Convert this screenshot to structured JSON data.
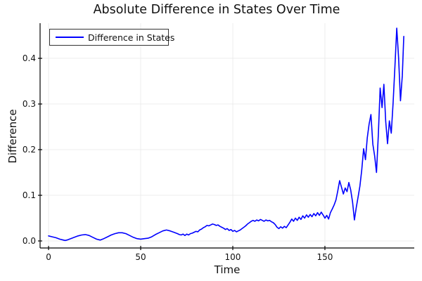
{
  "title": "Absolute Difference in States Over Time",
  "legend": {
    "label": "Difference in States"
  },
  "colors": {
    "line": "#0000ff",
    "grid": "#ececec",
    "spine": "#000000",
    "text": "#111111",
    "background": "#ffffff"
  },
  "chart_data": {
    "type": "line",
    "title": "Absolute Difference in States Over Time",
    "xlabel": "Time",
    "ylabel": "Difference",
    "xlim": [
      -4.6,
      198.5
    ],
    "ylim": [
      -0.0154,
      0.477
    ],
    "x_ticks": [
      0,
      50,
      100,
      150
    ],
    "x_tick_labels": [
      "0",
      "50",
      "100",
      "150"
    ],
    "y_ticks": [
      0.0,
      0.1,
      0.2,
      0.3,
      0.4
    ],
    "y_tick_labels": [
      "0.0",
      "0.1",
      "0.2",
      "0.3",
      "0.4"
    ],
    "grid": true,
    "legend_position": "top-left",
    "series": [
      {
        "name": "Difference in States",
        "color": "#0000ff",
        "points": [
          [
            0,
            0.011
          ],
          [
            2,
            0.009
          ],
          [
            4,
            0.007
          ],
          [
            6,
            0.004
          ],
          [
            8,
            0.002
          ],
          [
            9,
            0.001
          ],
          [
            10,
            0.002
          ],
          [
            12,
            0.005
          ],
          [
            14,
            0.008
          ],
          [
            16,
            0.011
          ],
          [
            18,
            0.013
          ],
          [
            20,
            0.014
          ],
          [
            22,
            0.012
          ],
          [
            24,
            0.008
          ],
          [
            26,
            0.004
          ],
          [
            28,
            0.002
          ],
          [
            30,
            0.005
          ],
          [
            32,
            0.009
          ],
          [
            34,
            0.013
          ],
          [
            36,
            0.016
          ],
          [
            38,
            0.018
          ],
          [
            40,
            0.018
          ],
          [
            42,
            0.016
          ],
          [
            44,
            0.012
          ],
          [
            46,
            0.008
          ],
          [
            48,
            0.005
          ],
          [
            50,
            0.004
          ],
          [
            52,
            0.005
          ],
          [
            54,
            0.006
          ],
          [
            56,
            0.009
          ],
          [
            58,
            0.014
          ],
          [
            60,
            0.018
          ],
          [
            62,
            0.022
          ],
          [
            64,
            0.024
          ],
          [
            66,
            0.022
          ],
          [
            68,
            0.019
          ],
          [
            70,
            0.016
          ],
          [
            71,
            0.014
          ],
          [
            72,
            0.013
          ],
          [
            73,
            0.015
          ],
          [
            74,
            0.012
          ],
          [
            75,
            0.015
          ],
          [
            76,
            0.013
          ],
          [
            77,
            0.016
          ],
          [
            78,
            0.017
          ],
          [
            79,
            0.019
          ],
          [
            80,
            0.021
          ],
          [
            81,
            0.02
          ],
          [
            82,
            0.024
          ],
          [
            83,
            0.026
          ],
          [
            84,
            0.029
          ],
          [
            85,
            0.031
          ],
          [
            86,
            0.034
          ],
          [
            87,
            0.033
          ],
          [
            88,
            0.035
          ],
          [
            89,
            0.037
          ],
          [
            90,
            0.036
          ],
          [
            91,
            0.034
          ],
          [
            92,
            0.035
          ],
          [
            93,
            0.032
          ],
          [
            94,
            0.03
          ],
          [
            95,
            0.028
          ],
          [
            96,
            0.025
          ],
          [
            97,
            0.027
          ],
          [
            98,
            0.023
          ],
          [
            99,
            0.025
          ],
          [
            100,
            0.021
          ],
          [
            101,
            0.023
          ],
          [
            102,
            0.02
          ],
          [
            103,
            0.022
          ],
          [
            104,
            0.024
          ],
          [
            105,
            0.027
          ],
          [
            106,
            0.03
          ],
          [
            107,
            0.033
          ],
          [
            108,
            0.037
          ],
          [
            109,
            0.04
          ],
          [
            110,
            0.043
          ],
          [
            111,
            0.045
          ],
          [
            112,
            0.043
          ],
          [
            113,
            0.046
          ],
          [
            114,
            0.044
          ],
          [
            115,
            0.047
          ],
          [
            116,
            0.045
          ],
          [
            117,
            0.043
          ],
          [
            118,
            0.046
          ],
          [
            119,
            0.044
          ],
          [
            120,
            0.045
          ],
          [
            121,
            0.042
          ],
          [
            122,
            0.04
          ],
          [
            123,
            0.036
          ],
          [
            124,
            0.03
          ],
          [
            125,
            0.027
          ],
          [
            126,
            0.031
          ],
          [
            127,
            0.028
          ],
          [
            128,
            0.032
          ],
          [
            129,
            0.029
          ],
          [
            130,
            0.035
          ],
          [
            131,
            0.041
          ],
          [
            132,
            0.048
          ],
          [
            133,
            0.043
          ],
          [
            134,
            0.05
          ],
          [
            135,
            0.045
          ],
          [
            136,
            0.052
          ],
          [
            137,
            0.047
          ],
          [
            138,
            0.055
          ],
          [
            139,
            0.05
          ],
          [
            140,
            0.057
          ],
          [
            141,
            0.052
          ],
          [
            142,
            0.058
          ],
          [
            143,
            0.053
          ],
          [
            144,
            0.06
          ],
          [
            145,
            0.055
          ],
          [
            146,
            0.062
          ],
          [
            147,
            0.056
          ],
          [
            148,
            0.063
          ],
          [
            149,
            0.057
          ],
          [
            150,
            0.05
          ],
          [
            151,
            0.056
          ],
          [
            152,
            0.048
          ],
          [
            153,
            0.062
          ],
          [
            154,
            0.07
          ],
          [
            155,
            0.079
          ],
          [
            156,
            0.09
          ],
          [
            157,
            0.11
          ],
          [
            158,
            0.132
          ],
          [
            159,
            0.118
          ],
          [
            160,
            0.103
          ],
          [
            161,
            0.116
          ],
          [
            162,
            0.108
          ],
          [
            163,
            0.128
          ],
          [
            164,
            0.112
          ],
          [
            165,
            0.085
          ],
          [
            166,
            0.046
          ],
          [
            167,
            0.073
          ],
          [
            168,
            0.096
          ],
          [
            169,
            0.12
          ],
          [
            170,
            0.155
          ],
          [
            171,
            0.202
          ],
          [
            172,
            0.178
          ],
          [
            173,
            0.226
          ],
          [
            174,
            0.256
          ],
          [
            175,
            0.277
          ],
          [
            176,
            0.212
          ],
          [
            177,
            0.186
          ],
          [
            178,
            0.15
          ],
          [
            179,
            0.232
          ],
          [
            180,
            0.335
          ],
          [
            181,
            0.292
          ],
          [
            182,
            0.343
          ],
          [
            183,
            0.262
          ],
          [
            184,
            0.213
          ],
          [
            185,
            0.263
          ],
          [
            186,
            0.236
          ],
          [
            187,
            0.302
          ],
          [
            188,
            0.382
          ],
          [
            189,
            0.466
          ],
          [
            190,
            0.402
          ],
          [
            191,
            0.307
          ],
          [
            192,
            0.362
          ],
          [
            192.8,
            0.448
          ]
        ]
      }
    ]
  }
}
